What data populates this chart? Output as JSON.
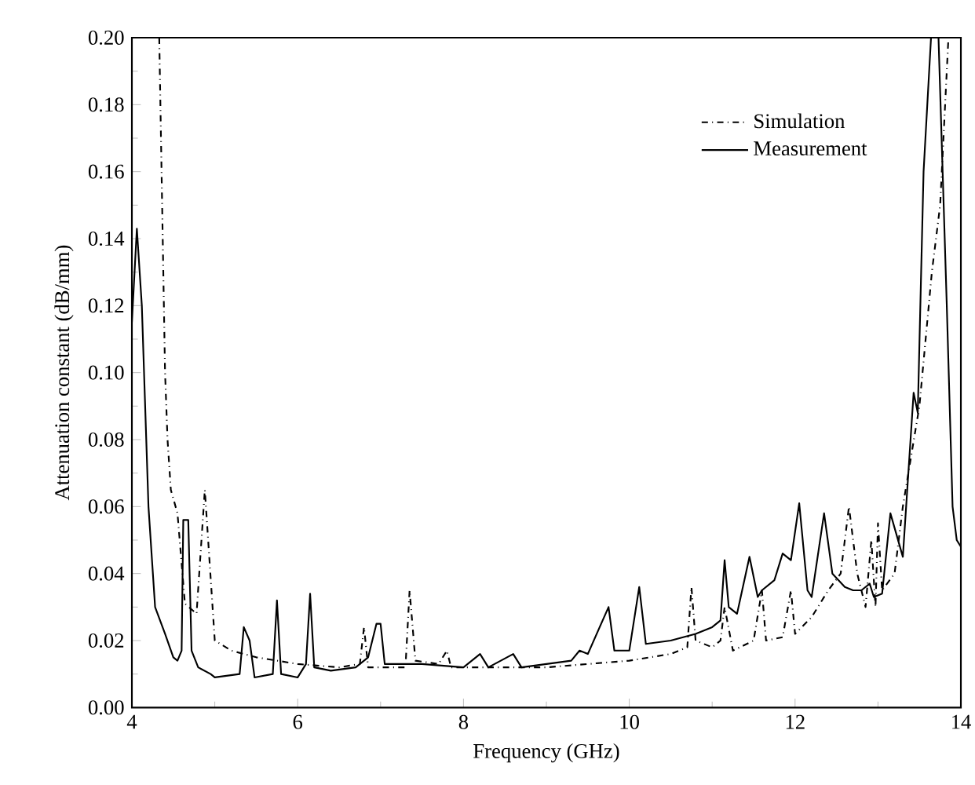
{
  "chart_data": {
    "type": "line",
    "xlabel": "Frequency (GHz)",
    "ylabel": "Attenuation constant (dB/mm)",
    "xlim": [
      4,
      14
    ],
    "ylim": [
      0,
      0.2
    ],
    "xticks": [
      4,
      6,
      8,
      10,
      12,
      14
    ],
    "yticks": [
      {
        "value": 0,
        "label": "0.00"
      },
      {
        "value": 0.02,
        "label": "0.02"
      },
      {
        "value": 0.04,
        "label": "0.04"
      },
      {
        "value": 0.06,
        "label": "0.06"
      },
      {
        "value": 0.08,
        "label": "0.08"
      },
      {
        "value": 0.1,
        "label": "0.10"
      },
      {
        "value": 0.12,
        "label": "0.12"
      },
      {
        "value": 0.14,
        "label": "0.14"
      },
      {
        "value": 0.16,
        "label": "0.16"
      },
      {
        "value": 0.18,
        "label": "0.18"
      },
      {
        "value": 0.2,
        "label": "0.20"
      }
    ],
    "legend": "top right",
    "grid": false,
    "marker": "none",
    "series": [
      {
        "name": "Simulation",
        "color": "#000000",
        "line_style": "dashdot",
        "x": [
          4.33,
          4.4,
          4.43,
          4.47,
          4.55,
          4.64,
          4.78,
          4.88,
          5.0,
          5.2,
          5.5,
          6.0,
          6.5,
          6.75,
          6.8,
          6.85,
          7.3,
          7.35,
          7.42,
          7.7,
          7.8,
          7.85,
          8.5,
          9.0,
          9.5,
          10.0,
          10.5,
          10.7,
          10.75,
          10.8,
          11.0,
          11.1,
          11.15,
          11.25,
          11.5,
          11.6,
          11.65,
          11.85,
          11.95,
          12.0,
          12.2,
          12.4,
          12.55,
          12.65,
          12.75,
          12.85,
          12.92,
          12.97,
          13.0,
          13.05,
          13.2,
          13.3,
          13.5,
          13.65,
          13.75,
          13.85,
          13.92
        ],
        "values": [
          0.2,
          0.1,
          0.08,
          0.065,
          0.058,
          0.031,
          0.028,
          0.065,
          0.02,
          0.017,
          0.015,
          0.013,
          0.012,
          0.013,
          0.024,
          0.012,
          0.012,
          0.035,
          0.014,
          0.013,
          0.017,
          0.012,
          0.012,
          0.012,
          0.013,
          0.014,
          0.016,
          0.018,
          0.036,
          0.02,
          0.018,
          0.02,
          0.03,
          0.017,
          0.02,
          0.035,
          0.02,
          0.021,
          0.035,
          0.022,
          0.027,
          0.035,
          0.04,
          0.06,
          0.04,
          0.03,
          0.05,
          0.03,
          0.055,
          0.035,
          0.04,
          0.06,
          0.09,
          0.13,
          0.15,
          0.2,
          0.2
        ]
      },
      {
        "name": "Measurement",
        "color": "#000000",
        "line_style": "solid",
        "x": [
          4.0,
          4.06,
          4.12,
          4.2,
          4.28,
          4.4,
          4.5,
          4.55,
          4.6,
          4.62,
          4.68,
          4.72,
          4.8,
          4.95,
          5.0,
          5.3,
          5.35,
          5.42,
          5.48,
          5.7,
          5.75,
          5.8,
          6.0,
          6.1,
          6.15,
          6.2,
          6.4,
          6.7,
          6.85,
          6.95,
          7.0,
          7.05,
          7.5,
          8.0,
          8.2,
          8.3,
          8.6,
          8.7,
          9.0,
          9.3,
          9.4,
          9.5,
          9.75,
          9.82,
          10.0,
          10.12,
          10.2,
          10.5,
          10.8,
          11.0,
          11.1,
          11.15,
          11.2,
          11.3,
          11.45,
          11.55,
          11.6,
          11.75,
          11.85,
          11.95,
          12.05,
          12.15,
          12.2,
          12.35,
          12.45,
          12.6,
          12.7,
          12.8,
          12.9,
          12.95,
          13.05,
          13.15,
          13.3,
          13.43,
          13.48,
          13.55,
          13.64,
          13.73,
          13.83,
          13.9,
          13.95,
          14.0
        ],
        "values": [
          0.115,
          0.143,
          0.12,
          0.06,
          0.03,
          0.022,
          0.015,
          0.014,
          0.017,
          0.056,
          0.056,
          0.017,
          0.012,
          0.01,
          0.009,
          0.01,
          0.024,
          0.02,
          0.009,
          0.01,
          0.032,
          0.01,
          0.009,
          0.013,
          0.034,
          0.012,
          0.011,
          0.012,
          0.015,
          0.025,
          0.025,
          0.013,
          0.013,
          0.012,
          0.016,
          0.012,
          0.016,
          0.012,
          0.013,
          0.014,
          0.017,
          0.016,
          0.03,
          0.017,
          0.017,
          0.036,
          0.019,
          0.02,
          0.022,
          0.024,
          0.026,
          0.044,
          0.03,
          0.028,
          0.045,
          0.033,
          0.035,
          0.038,
          0.046,
          0.044,
          0.061,
          0.035,
          0.033,
          0.058,
          0.04,
          0.036,
          0.035,
          0.035,
          0.037,
          0.033,
          0.034,
          0.058,
          0.045,
          0.094,
          0.088,
          0.16,
          0.2,
          0.2,
          0.12,
          0.06,
          0.05,
          0.048
        ]
      }
    ]
  }
}
